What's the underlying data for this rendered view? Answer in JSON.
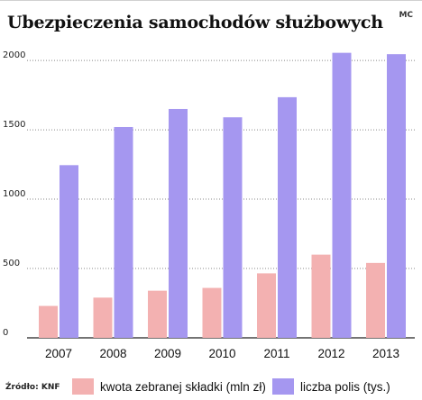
{
  "header": {
    "title": "Ubezpieczenia samochodów służbowych",
    "credit": "MC"
  },
  "footer": {
    "source": "Źródło: KNF"
  },
  "colors": {
    "series_a": "#f3b1b1",
    "series_b": "#a597f0",
    "axis": "#222222",
    "grid": "#888888"
  },
  "chart_data": {
    "type": "bar",
    "title": "Ubezpieczenia samochodów służbowych",
    "xlabel": "",
    "ylabel": "",
    "categories": [
      "2007",
      "2008",
      "2009",
      "2010",
      "2011",
      "2012",
      "2013"
    ],
    "series": [
      {
        "name": "kwota zebranej składki (mln zł)",
        "values": [
          230,
          290,
          340,
          360,
          465,
          600,
          540
        ]
      },
      {
        "name": "liczba polis (tys.)",
        "values": [
          1245,
          1520,
          1650,
          1590,
          1735,
          2055,
          2045
        ]
      }
    ],
    "yticks": [
      0,
      500,
      1000,
      1500,
      2000
    ],
    "ylim": [
      0,
      2150
    ],
    "grid": true,
    "legend": "bottom"
  }
}
